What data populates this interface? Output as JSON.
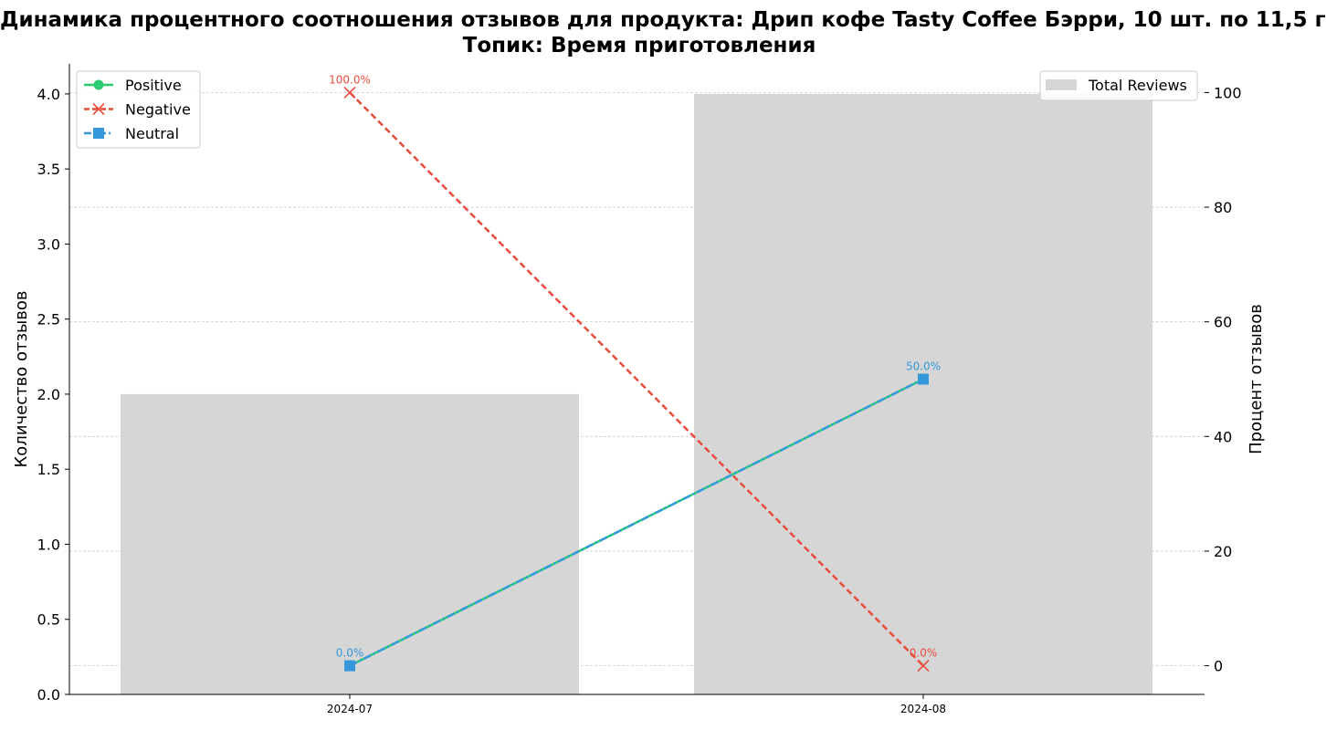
{
  "chart_data": {
    "type": "bar+line",
    "title": "Динамика процентного соотношения отзывов для продукта: Дрип кофе Tasty Coffee Бэрри, 10 шт. по 11,5 г",
    "subtitle": "Топик: Время приготовления",
    "categories": [
      "2024-07",
      "2024-08"
    ],
    "ylabel_left": "Количество отзывов",
    "ylabel_right": "Процент отзывов",
    "ylim_left": [
      0,
      4.2
    ],
    "ylim_right": [
      -5,
      105
    ],
    "yticks_left": [
      "0.0",
      "0.5",
      "1.0",
      "1.5",
      "2.0",
      "2.5",
      "3.0",
      "3.5",
      "4.0"
    ],
    "yticks_right": [
      "0",
      "20",
      "40",
      "60",
      "80",
      "100"
    ],
    "grid": true,
    "bars": {
      "name": "Total Reviews",
      "values": [
        2,
        4
      ],
      "color": "#d6d6d6",
      "legend_position": "top-right"
    },
    "series": [
      {
        "name": "Positive",
        "values": [
          0,
          50
        ],
        "color": "#2ecc71",
        "marker": "circle",
        "line": "solid"
      },
      {
        "name": "Negative",
        "values": [
          100,
          0
        ],
        "color": "#e74c3c",
        "marker": "x",
        "line": "dashed"
      },
      {
        "name": "Neutral",
        "values": [
          0,
          50
        ],
        "color": "#3498db",
        "marker": "square",
        "line": "dashdot"
      }
    ],
    "data_labels": [
      {
        "series": "Negative",
        "category": "2024-07",
        "text": "100.0%"
      },
      {
        "series": "Negative",
        "category": "2024-08",
        "text": "0.0%"
      },
      {
        "series": "Neutral",
        "category": "2024-07",
        "text": "0.0%"
      },
      {
        "series": "Neutral",
        "category": "2024-08",
        "text": "50.0%"
      }
    ],
    "legend_position": "top-left"
  }
}
